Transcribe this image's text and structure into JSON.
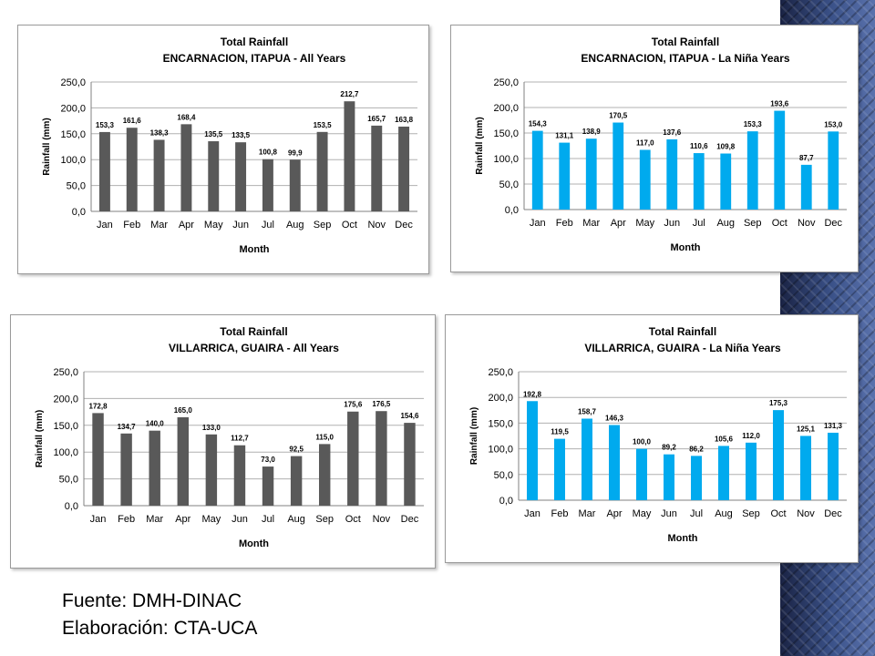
{
  "footer": {
    "source": "Fuente: DMH-DINAC",
    "author": "Elaboración: CTA-UCA"
  },
  "colors": {
    "dark_bar": "#595959",
    "blue_bar": "#00aaee",
    "band": "#2c3e6e"
  },
  "chart_data": [
    {
      "type": "bar",
      "title": "Total Rainfall",
      "subtitle": "ENCARNACION, ITAPUA - All Years",
      "xlabel": "Month",
      "ylabel": "Rainfall (mm)",
      "ylim": [
        0,
        250
      ],
      "yticks": [
        "0,0",
        "50,0",
        "100,0",
        "150,0",
        "200,0",
        "250,0"
      ],
      "grid": true,
      "color": "#595959",
      "categories": [
        "Jan",
        "Feb",
        "Mar",
        "Apr",
        "May",
        "Jun",
        "Jul",
        "Aug",
        "Sep",
        "Oct",
        "Nov",
        "Dec"
      ],
      "values": [
        153.3,
        161.6,
        138.3,
        168.4,
        135.5,
        133.5,
        100.8,
        99.9,
        153.5,
        212.7,
        165.7,
        163.8
      ],
      "labels": [
        "153,3",
        "161,6",
        "138,3",
        "168,4",
        "135,5",
        "133,5",
        "100,8",
        "99,9",
        "153,5",
        "212,7",
        "165,7",
        "163,8"
      ]
    },
    {
      "type": "bar",
      "title": "Total Rainfall",
      "subtitle": "ENCARNACION, ITAPUA - La Niña Years",
      "xlabel": "Month",
      "ylabel": "Rainfall (mm)",
      "ylim": [
        0,
        250
      ],
      "yticks": [
        "0,0",
        "50,0",
        "100,0",
        "150,0",
        "200,0",
        "250,0"
      ],
      "grid": true,
      "color": "#00aaee",
      "categories": [
        "Jan",
        "Feb",
        "Mar",
        "Apr",
        "May",
        "Jun",
        "Jul",
        "Aug",
        "Sep",
        "Oct",
        "Nov",
        "Dec"
      ],
      "values": [
        154.3,
        131.1,
        138.9,
        170.5,
        117.0,
        137.6,
        110.6,
        109.8,
        153.3,
        193.6,
        87.7,
        153.0
      ],
      "labels": [
        "154,3",
        "131,1",
        "138,9",
        "170,5",
        "117,0",
        "137,6",
        "110,6",
        "109,8",
        "153,3",
        "193,6",
        "87,7",
        "153,0"
      ]
    },
    {
      "type": "bar",
      "title": "Total Rainfall",
      "subtitle": "VILLARRICA, GUAIRA - All Years",
      "xlabel": "Month",
      "ylabel": "Rainfall (mm)",
      "ylim": [
        0,
        250
      ],
      "yticks": [
        "0,0",
        "50,0",
        "100,0",
        "150,0",
        "200,0",
        "250,0"
      ],
      "grid": true,
      "color": "#595959",
      "categories": [
        "Jan",
        "Feb",
        "Mar",
        "Apr",
        "May",
        "Jun",
        "Jul",
        "Aug",
        "Sep",
        "Oct",
        "Nov",
        "Dec"
      ],
      "values": [
        172.8,
        134.7,
        140.0,
        165.0,
        133.0,
        112.7,
        73.0,
        92.5,
        115.0,
        175.6,
        176.5,
        154.6
      ],
      "labels": [
        "172,8",
        "134,7",
        "140,0",
        "165,0",
        "133,0",
        "112,7",
        "73,0",
        "92,5",
        "115,0",
        "175,6",
        "176,5",
        "154,6"
      ]
    },
    {
      "type": "bar",
      "title": "Total Rainfall",
      "subtitle": "VILLARRICA, GUAIRA - La Niña Years",
      "xlabel": "Month",
      "ylabel": "Rainfall (mm)",
      "ylim": [
        0,
        250
      ],
      "yticks": [
        "0,0",
        "50,0",
        "100,0",
        "150,0",
        "200,0",
        "250,0"
      ],
      "grid": true,
      "color": "#00aaee",
      "categories": [
        "Jan",
        "Feb",
        "Mar",
        "Apr",
        "May",
        "Jun",
        "Jul",
        "Aug",
        "Sep",
        "Oct",
        "Nov",
        "Dec"
      ],
      "values": [
        192.8,
        119.5,
        158.7,
        146.3,
        100.0,
        89.2,
        86.2,
        105.6,
        112.0,
        175.3,
        125.1,
        131.3
      ],
      "labels": [
        "192,8",
        "119,5",
        "158,7",
        "146,3",
        "100,0",
        "89,2",
        "86,2",
        "105,6",
        "112,0",
        "175,3",
        "125,1",
        "131,3"
      ]
    }
  ]
}
